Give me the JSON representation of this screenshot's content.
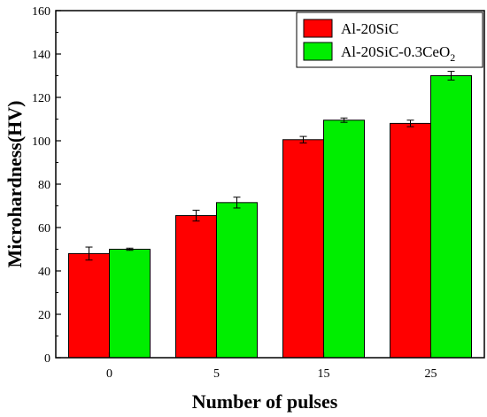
{
  "chart_data": {
    "type": "bar",
    "title": "",
    "xlabel": "Number of pulses",
    "ylabel": "Microhardness(HV)",
    "categories": [
      "0",
      "5",
      "15",
      "25"
    ],
    "ylim": [
      0,
      160
    ],
    "yticks": [
      "0",
      "20",
      "40",
      "60",
      "80",
      "100",
      "120",
      "140",
      "160"
    ],
    "grid": false,
    "legend_position": "top-right",
    "series": [
      {
        "name": "Al-20SiC",
        "name_parts": {
          "base": "Al-20SiC",
          "sub": ""
        },
        "color": "#ff0000",
        "values": [
          48,
          65.5,
          100.5,
          108
        ],
        "errors": [
          3,
          2.5,
          1.5,
          1.5
        ]
      },
      {
        "name": "Al-20SiC-0.3CeO2",
        "name_parts": {
          "base": "Al-20SiC-0.3CeO",
          "sub": "2"
        },
        "color": "#00ee00",
        "values": [
          50,
          71.5,
          109.5,
          130
        ],
        "errors": [
          0.5,
          2.5,
          1,
          2
        ]
      }
    ]
  }
}
